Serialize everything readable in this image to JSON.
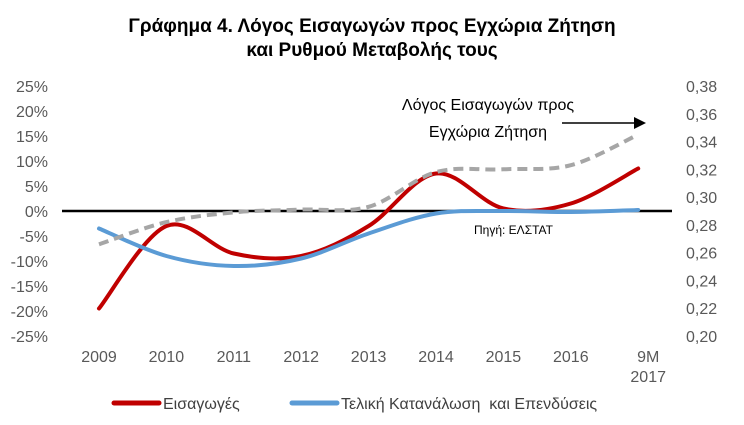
{
  "chart_data": {
    "type": "line",
    "title_line1": "Γράφημα 4. Λόγος Εισαγωγών προς Εγχώρια Ζήτηση",
    "title_line2": "και Ρυθμού Μεταβολής τους",
    "categories": [
      "2009",
      "2010",
      "2011",
      "2012",
      "2013",
      "2014",
      "2015",
      "2016",
      "9M 2017"
    ],
    "category_lines": [
      [
        "2009"
      ],
      [
        "2010"
      ],
      [
        "2011"
      ],
      [
        "2012"
      ],
      [
        "2013"
      ],
      [
        "2014"
      ],
      [
        "2015"
      ],
      [
        "2016"
      ],
      [
        "9M",
        "2017"
      ]
    ],
    "y_left": {
      "ticks": [
        25,
        20,
        15,
        10,
        5,
        0,
        -5,
        -10,
        -15,
        -20,
        -25
      ],
      "tick_labels": [
        "25%",
        "20%",
        "15%",
        "10%",
        "5%",
        "0%",
        "-5%",
        "-10%",
        "-15%",
        "-20%",
        "-25%"
      ],
      "lim": [
        -25,
        25
      ]
    },
    "y_right": {
      "ticks": [
        0.38,
        0.36,
        0.34,
        0.32,
        0.3,
        0.28,
        0.26,
        0.24,
        0.22,
        0.2
      ],
      "tick_labels": [
        "0,38",
        "0,36",
        "0,34",
        "0,32",
        "0,30",
        "0,28",
        "0,26",
        "0,24",
        "0,22",
        "0,20"
      ],
      "lim": [
        0.2,
        0.38
      ]
    },
    "series": [
      {
        "name": "Εισαγωγές",
        "axis": "left",
        "color": "#C00000",
        "style": "solid",
        "values": [
          -19.5,
          -3.0,
          -8.5,
          -9.0,
          -3.0,
          7.5,
          0.5,
          1.5,
          8.5
        ]
      },
      {
        "name": "Τελική Κατανάλωση  και Επενδύσεις",
        "axis": "left",
        "color": "#5B9BD5",
        "style": "solid",
        "values": [
          -3.5,
          -9.0,
          -11.0,
          -9.5,
          -4.5,
          -0.5,
          0.0,
          -0.2,
          0.2
        ]
      },
      {
        "axis": "right",
        "color": "#A6A6A6",
        "style": "dashed",
        "values": [
          0.266,
          0.282,
          0.289,
          0.291,
          0.293,
          0.318,
          0.32,
          0.323,
          0.345
        ]
      }
    ],
    "annotation_line1": "Λόγος Εισαγωγών προς",
    "annotation_line2": "Εγχώρια Ζήτηση",
    "source": "Πηγή: ΕΛΣΤΑΤ",
    "legend_position": "bottom",
    "grid": false
  }
}
